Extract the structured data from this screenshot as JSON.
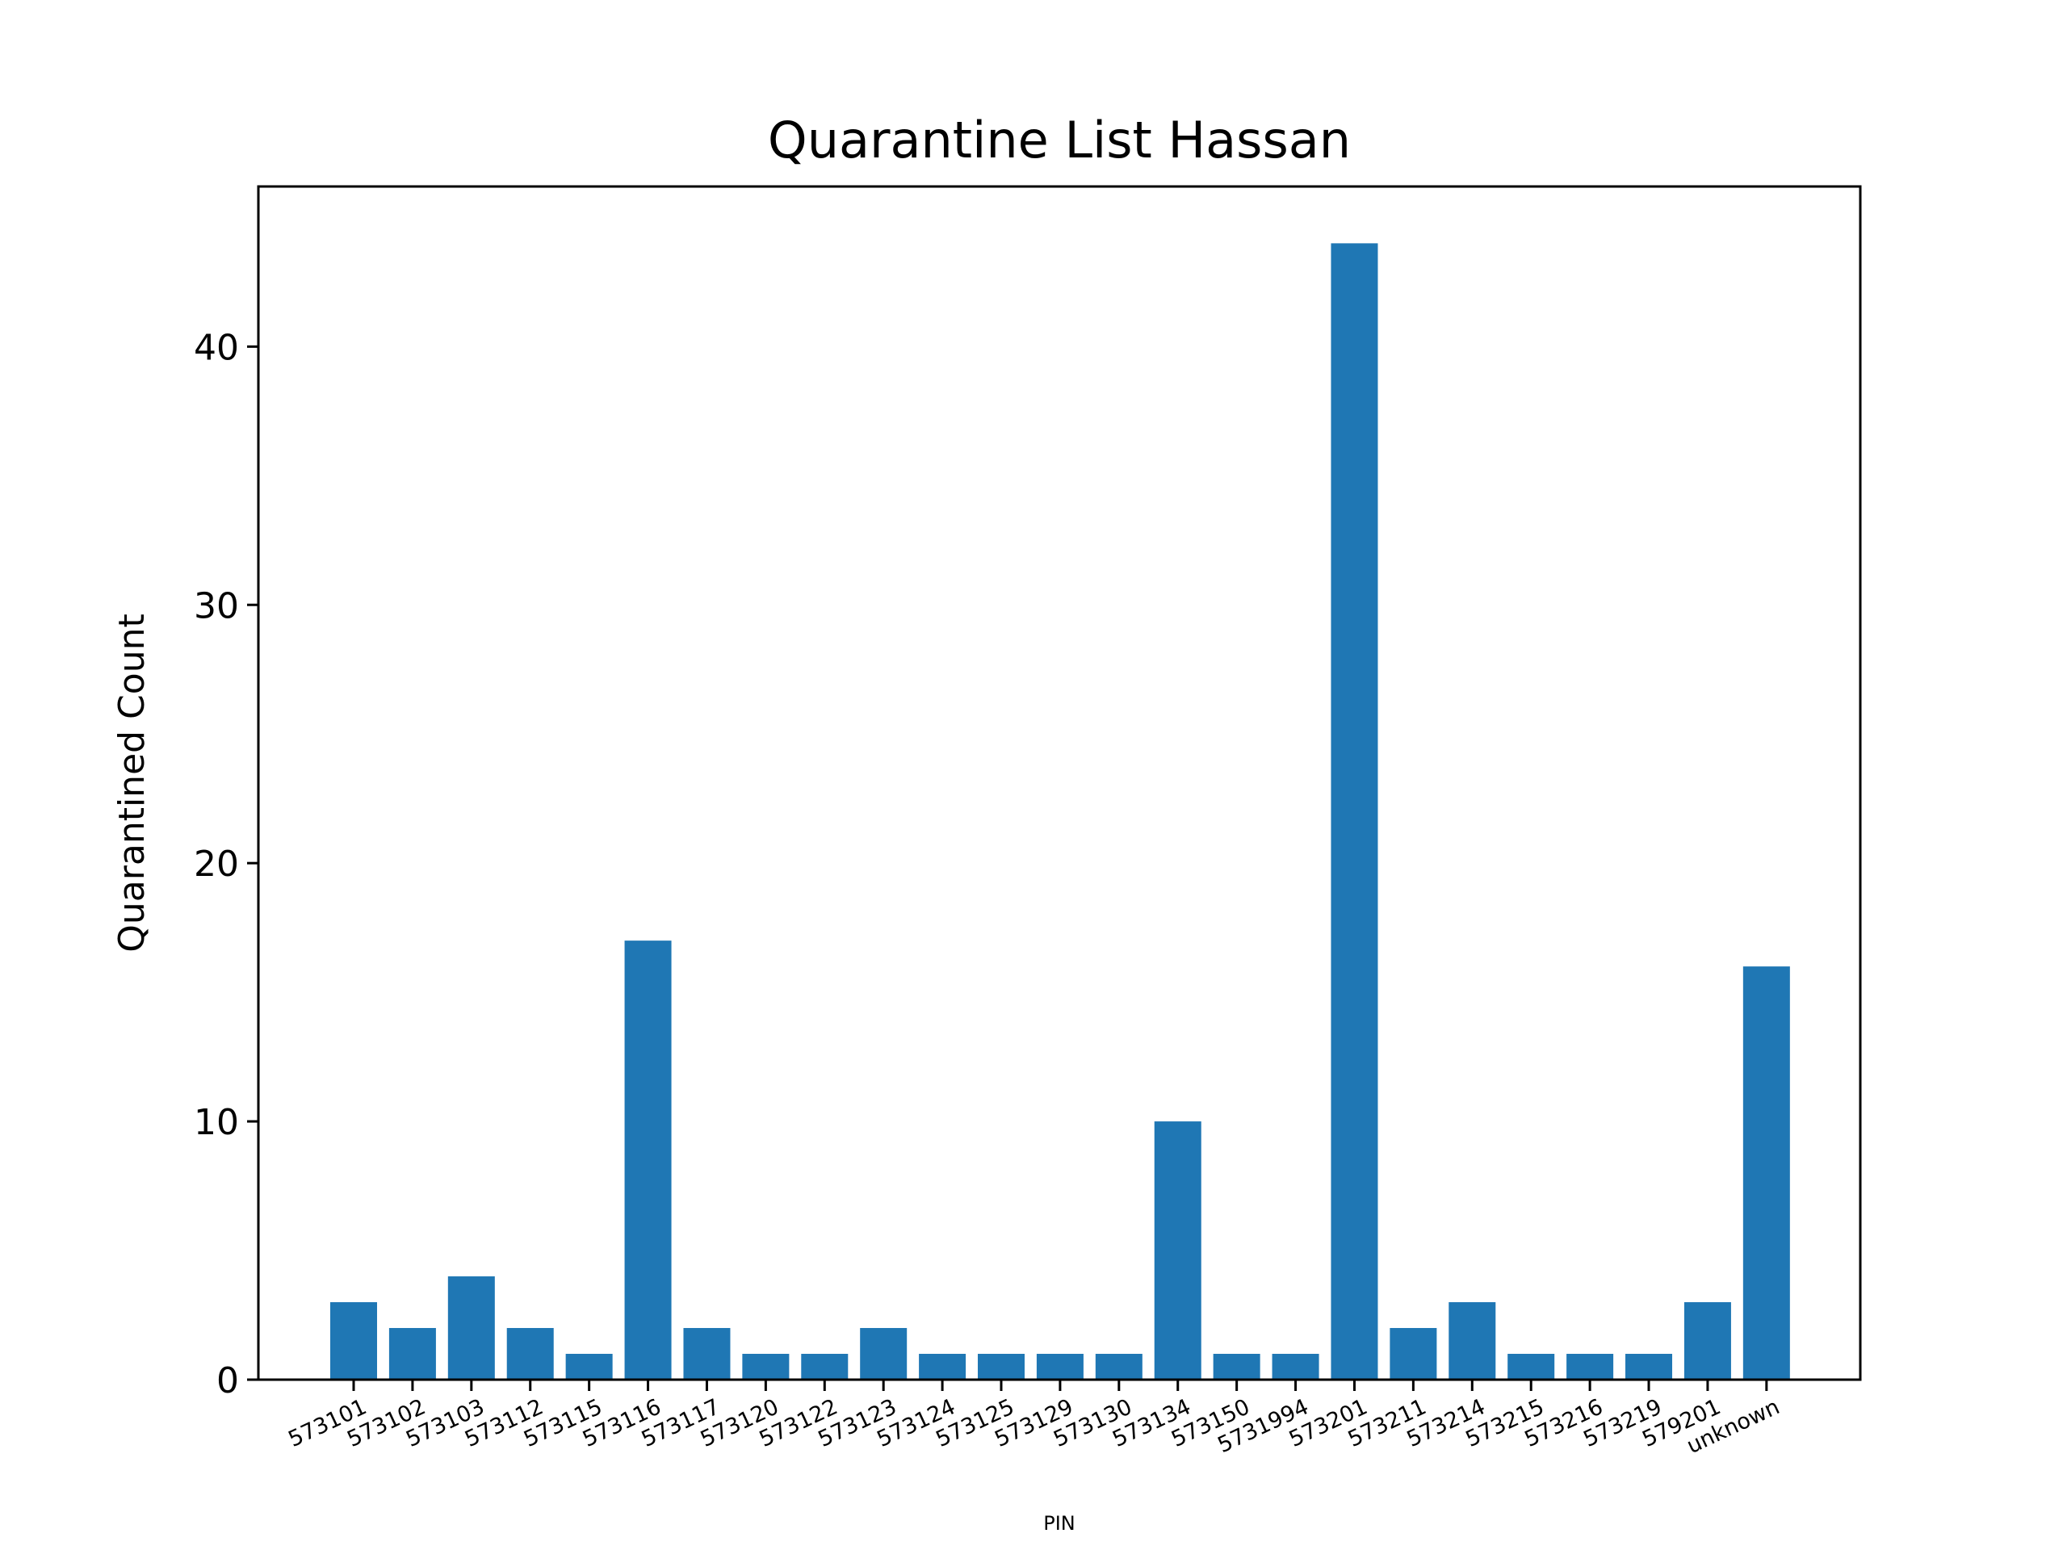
{
  "chart_data": {
    "type": "bar",
    "title": "Quarantine List Hassan",
    "xlabel": "PIN",
    "ylabel": "Quarantined Count",
    "categories": [
      "573101",
      "573102",
      "573103",
      "573112",
      "573115",
      "573116",
      "573117",
      "573120",
      "573122",
      "573123",
      "573124",
      "573125",
      "573129",
      "573130",
      "573134",
      "573150",
      "5731994",
      "573201",
      "573211",
      "573214",
      "573215",
      "573216",
      "573219",
      "579201",
      "unknown"
    ],
    "values": [
      3,
      2,
      4,
      2,
      1,
      17,
      2,
      1,
      1,
      2,
      1,
      1,
      1,
      1,
      10,
      1,
      1,
      44,
      2,
      3,
      1,
      1,
      1,
      3,
      16
    ],
    "ylim": [
      0,
      46.2
    ],
    "yticks": [
      0,
      10,
      20,
      30,
      40
    ],
    "ytick_labels": [
      "0",
      "10",
      "20",
      "30",
      "40"
    ],
    "bar_color": "#1f77b4",
    "grid": false,
    "legend": "none"
  }
}
